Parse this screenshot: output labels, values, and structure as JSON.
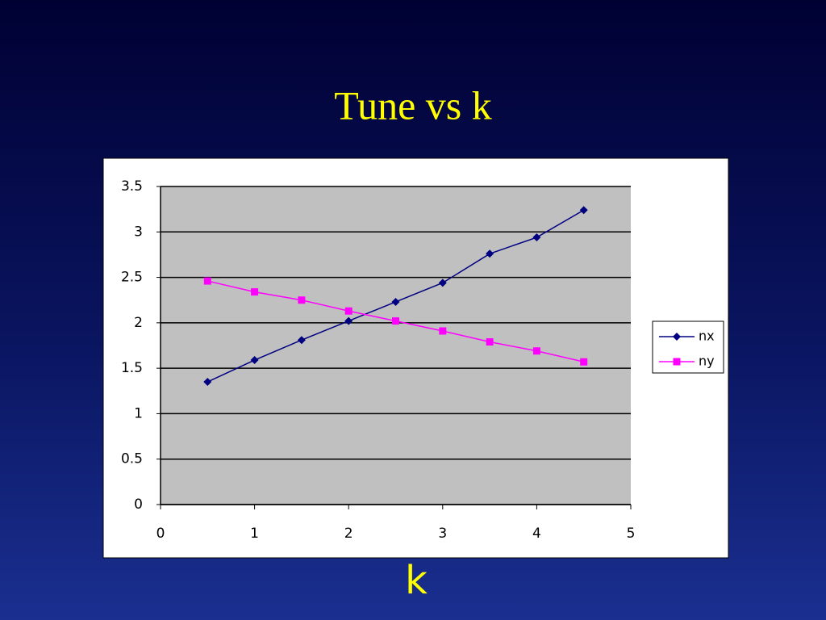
{
  "chart_data": {
    "type": "line",
    "title": "Tune vs k",
    "x_label": "k",
    "x": [
      0.5,
      1,
      1.5,
      2,
      2.5,
      3,
      3.5,
      4,
      4.5
    ],
    "series": [
      {
        "name": "nx",
        "color": "#000080",
        "marker": "diamond",
        "values": [
          1.35,
          1.59,
          1.81,
          2.02,
          2.23,
          2.44,
          2.76,
          2.94,
          3.24
        ]
      },
      {
        "name": "ny",
        "color": "#ff00ff",
        "marker": "square",
        "values": [
          2.46,
          2.34,
          2.25,
          2.13,
          2.02,
          1.91,
          1.79,
          1.69,
          1.57
        ]
      }
    ],
    "xlim": [
      0,
      5
    ],
    "xticks": [
      0,
      1,
      2,
      3,
      4,
      5
    ],
    "ylim": [
      0,
      3.5
    ],
    "yticks": [
      0,
      0.5,
      1,
      1.5,
      2,
      2.5,
      3,
      3.5
    ],
    "grid": true,
    "legend": "right"
  }
}
